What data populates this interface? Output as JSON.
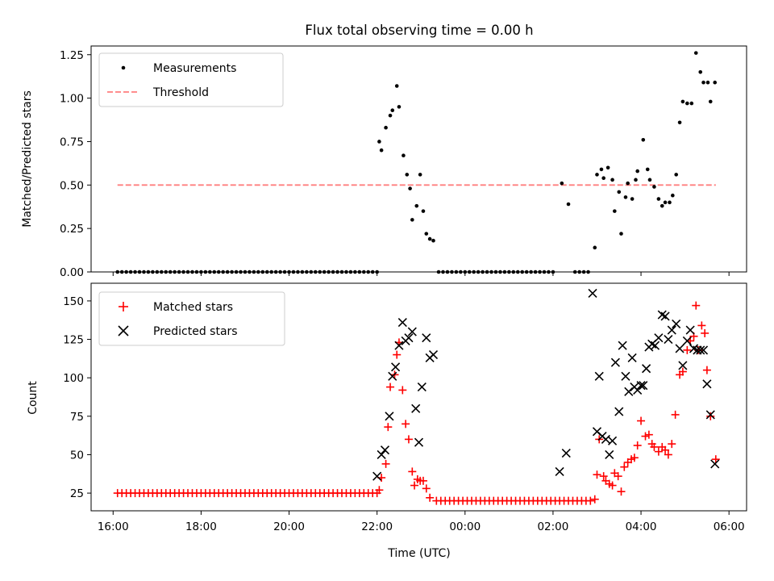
{
  "chart_data": {
    "type": "scatter",
    "title": "Flux total observing time = 0.00 h",
    "xlabel": "Time (UTC)",
    "x_unit": "hours since 16:00 UTC",
    "xlim": [
      -0.5,
      14.4
    ],
    "xticks": [
      {
        "v": 0,
        "label": "16:00"
      },
      {
        "v": 2,
        "label": "18:00"
      },
      {
        "v": 4,
        "label": "20:00"
      },
      {
        "v": 6,
        "label": "22:00"
      },
      {
        "v": 8,
        "label": "00:00"
      },
      {
        "v": 10,
        "label": "02:00"
      },
      {
        "v": 12,
        "label": "04:00"
      },
      {
        "v": 14,
        "label": "06:00"
      }
    ],
    "top": {
      "ylabel": "Matched/Predicted stars",
      "ylim": [
        0,
        1.3
      ],
      "yticks": [
        {
          "v": 0.0,
          "label": "0.00"
        },
        {
          "v": 0.25,
          "label": "0.25"
        },
        {
          "v": 0.5,
          "label": "0.50"
        },
        {
          "v": 0.75,
          "label": "0.75"
        },
        {
          "v": 1.0,
          "label": "1.00"
        },
        {
          "v": 1.25,
          "label": "1.25"
        }
      ],
      "legend": {
        "location": "upper-left",
        "measurements": "Measurements",
        "threshold": "Threshold"
      },
      "threshold": {
        "value": 0.5,
        "x_start": 0.1,
        "x_end": 13.7,
        "color": "#ff7f7f"
      },
      "marker_color": "#000000",
      "zero_range": [
        [
          0.1,
          6.0
        ],
        [
          7.4,
          10.0
        ],
        [
          10.5,
          10.85
        ]
      ],
      "zero_step": 0.1,
      "points": [
        [
          6.05,
          0.75
        ],
        [
          6.1,
          0.7
        ],
        [
          6.2,
          0.83
        ],
        [
          6.3,
          0.9
        ],
        [
          6.35,
          0.93
        ],
        [
          6.45,
          1.07
        ],
        [
          6.5,
          0.95
        ],
        [
          6.6,
          0.67
        ],
        [
          6.68,
          0.56
        ],
        [
          6.75,
          0.48
        ],
        [
          6.8,
          0.3
        ],
        [
          6.9,
          0.38
        ],
        [
          6.98,
          0.56
        ],
        [
          7.05,
          0.35
        ],
        [
          7.12,
          0.22
        ],
        [
          7.2,
          0.19
        ],
        [
          7.28,
          0.18
        ],
        [
          10.2,
          0.51
        ],
        [
          10.35,
          0.39
        ],
        [
          10.95,
          0.14
        ],
        [
          11.0,
          0.56
        ],
        [
          11.1,
          0.59
        ],
        [
          11.15,
          0.54
        ],
        [
          11.25,
          0.6
        ],
        [
          11.35,
          0.53
        ],
        [
          11.4,
          0.35
        ],
        [
          11.5,
          0.46
        ],
        [
          11.55,
          0.22
        ],
        [
          11.65,
          0.43
        ],
        [
          11.7,
          0.51
        ],
        [
          11.8,
          0.42
        ],
        [
          11.88,
          0.53
        ],
        [
          11.92,
          0.58
        ],
        [
          12.05,
          0.76
        ],
        [
          12.15,
          0.59
        ],
        [
          12.2,
          0.53
        ],
        [
          12.3,
          0.49
        ],
        [
          12.4,
          0.42
        ],
        [
          12.48,
          0.38
        ],
        [
          12.55,
          0.4
        ],
        [
          12.65,
          0.4
        ],
        [
          12.72,
          0.44
        ],
        [
          12.8,
          0.56
        ],
        [
          12.88,
          0.86
        ],
        [
          12.95,
          0.98
        ],
        [
          13.05,
          0.97
        ],
        [
          13.15,
          0.97
        ],
        [
          13.25,
          1.26
        ],
        [
          13.35,
          1.15
        ],
        [
          13.42,
          1.09
        ],
        [
          13.52,
          1.09
        ],
        [
          13.58,
          0.98
        ],
        [
          13.68,
          1.09
        ]
      ]
    },
    "bottom": {
      "ylabel": "Count",
      "ylim": [
        13.5,
        161.5
      ],
      "yticks": [
        {
          "v": 25,
          "label": "25"
        },
        {
          "v": 50,
          "label": "50"
        },
        {
          "v": 75,
          "label": "75"
        },
        {
          "v": 100,
          "label": "100"
        },
        {
          "v": 125,
          "label": "125"
        },
        {
          "v": 150,
          "label": "150"
        }
      ],
      "legend": {
        "location": "upper-left",
        "matched": "Matched stars",
        "predicted": "Predicted stars"
      },
      "matched_color": "#ff0000",
      "predicted_color": "#000000",
      "matched_flat": [
        {
          "from": 0.1,
          "to": 6.0,
          "value": 25
        },
        {
          "from": 7.35,
          "to": 10.9,
          "value": 20
        }
      ],
      "matched_step": 0.1,
      "matched": [
        [
          6.05,
          27
        ],
        [
          6.1,
          35
        ],
        [
          6.2,
          44
        ],
        [
          6.25,
          68
        ],
        [
          6.3,
          94
        ],
        [
          6.4,
          102
        ],
        [
          6.45,
          115
        ],
        [
          6.5,
          123
        ],
        [
          6.58,
          92
        ],
        [
          6.65,
          70
        ],
        [
          6.72,
          60
        ],
        [
          6.8,
          39
        ],
        [
          6.85,
          30
        ],
        [
          6.92,
          34
        ],
        [
          6.98,
          33
        ],
        [
          7.05,
          33
        ],
        [
          7.12,
          28
        ],
        [
          7.2,
          22
        ],
        [
          10.95,
          21
        ],
        [
          11.0,
          37
        ],
        [
          11.05,
          60
        ],
        [
          11.15,
          36
        ],
        [
          11.2,
          33
        ],
        [
          11.28,
          31
        ],
        [
          11.35,
          30
        ],
        [
          11.4,
          38
        ],
        [
          11.48,
          36
        ],
        [
          11.55,
          26
        ],
        [
          11.62,
          42
        ],
        [
          11.7,
          45
        ],
        [
          11.78,
          47
        ],
        [
          11.85,
          48
        ],
        [
          11.92,
          56
        ],
        [
          12.0,
          72
        ],
        [
          12.1,
          62
        ],
        [
          12.18,
          63
        ],
        [
          12.25,
          57
        ],
        [
          12.3,
          55
        ],
        [
          12.4,
          52
        ],
        [
          12.48,
          55
        ],
        [
          12.55,
          53
        ],
        [
          12.62,
          50
        ],
        [
          12.7,
          57
        ],
        [
          12.78,
          76
        ],
        [
          12.88,
          102
        ],
        [
          12.95,
          104
        ],
        [
          13.05,
          118
        ],
        [
          13.12,
          124
        ],
        [
          13.2,
          127
        ],
        [
          13.25,
          147
        ],
        [
          13.3,
          118
        ],
        [
          13.38,
          134
        ],
        [
          13.45,
          129
        ],
        [
          13.5,
          105
        ],
        [
          13.58,
          75
        ],
        [
          13.7,
          47
        ]
      ],
      "predicted": [
        [
          6.0,
          36
        ],
        [
          6.1,
          50
        ],
        [
          6.18,
          53
        ],
        [
          6.28,
          75
        ],
        [
          6.35,
          101
        ],
        [
          6.42,
          107
        ],
        [
          6.5,
          121
        ],
        [
          6.58,
          136
        ],
        [
          6.65,
          124
        ],
        [
          6.72,
          126
        ],
        [
          6.8,
          130
        ],
        [
          6.88,
          80
        ],
        [
          6.95,
          58
        ],
        [
          7.02,
          94
        ],
        [
          7.12,
          126
        ],
        [
          7.2,
          113
        ],
        [
          7.28,
          115
        ],
        [
          10.15,
          39
        ],
        [
          10.3,
          51
        ],
        [
          10.9,
          155
        ],
        [
          11.0,
          65
        ],
        [
          11.05,
          101
        ],
        [
          11.12,
          62
        ],
        [
          11.2,
          60
        ],
        [
          11.28,
          50
        ],
        [
          11.35,
          59
        ],
        [
          11.42,
          110
        ],
        [
          11.5,
          78
        ],
        [
          11.58,
          121
        ],
        [
          11.65,
          101
        ],
        [
          11.72,
          91
        ],
        [
          11.8,
          113
        ],
        [
          11.85,
          94
        ],
        [
          11.92,
          92
        ],
        [
          12.0,
          95
        ],
        [
          12.05,
          95
        ],
        [
          12.12,
          106
        ],
        [
          12.18,
          120
        ],
        [
          12.25,
          122
        ],
        [
          12.32,
          121
        ],
        [
          12.4,
          126
        ],
        [
          12.48,
          141
        ],
        [
          12.55,
          140
        ],
        [
          12.62,
          125
        ],
        [
          12.7,
          131
        ],
        [
          12.8,
          135
        ],
        [
          12.88,
          119
        ],
        [
          12.95,
          108
        ],
        [
          13.05,
          124
        ],
        [
          13.12,
          131
        ],
        [
          13.2,
          119
        ],
        [
          13.28,
          118
        ],
        [
          13.35,
          118
        ],
        [
          13.42,
          118
        ],
        [
          13.5,
          96
        ],
        [
          13.58,
          76
        ],
        [
          13.68,
          44
        ]
      ]
    }
  }
}
